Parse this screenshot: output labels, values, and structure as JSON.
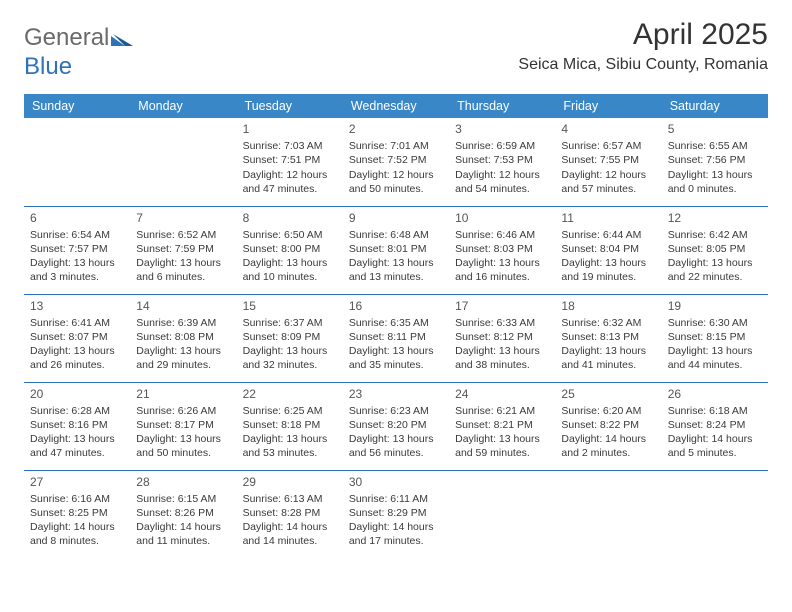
{
  "logo": {
    "text1": "General",
    "text2": "Blue"
  },
  "title": "April 2025",
  "location": "Seica Mica, Sibiu County, Romania",
  "calendar": {
    "header_bg": "#3a87c8",
    "header_fg": "#ffffff",
    "rule_color": "#2f72b8",
    "daynames": [
      "Sunday",
      "Monday",
      "Tuesday",
      "Wednesday",
      "Thursday",
      "Friday",
      "Saturday"
    ],
    "weeks": [
      [
        null,
        null,
        {
          "n": "1",
          "sr": "Sunrise: 7:03 AM",
          "ss": "Sunset: 7:51 PM",
          "dl1": "Daylight: 12 hours",
          "dl2": "and 47 minutes."
        },
        {
          "n": "2",
          "sr": "Sunrise: 7:01 AM",
          "ss": "Sunset: 7:52 PM",
          "dl1": "Daylight: 12 hours",
          "dl2": "and 50 minutes."
        },
        {
          "n": "3",
          "sr": "Sunrise: 6:59 AM",
          "ss": "Sunset: 7:53 PM",
          "dl1": "Daylight: 12 hours",
          "dl2": "and 54 minutes."
        },
        {
          "n": "4",
          "sr": "Sunrise: 6:57 AM",
          "ss": "Sunset: 7:55 PM",
          "dl1": "Daylight: 12 hours",
          "dl2": "and 57 minutes."
        },
        {
          "n": "5",
          "sr": "Sunrise: 6:55 AM",
          "ss": "Sunset: 7:56 PM",
          "dl1": "Daylight: 13 hours",
          "dl2": "and 0 minutes."
        }
      ],
      [
        {
          "n": "6",
          "sr": "Sunrise: 6:54 AM",
          "ss": "Sunset: 7:57 PM",
          "dl1": "Daylight: 13 hours",
          "dl2": "and 3 minutes."
        },
        {
          "n": "7",
          "sr": "Sunrise: 6:52 AM",
          "ss": "Sunset: 7:59 PM",
          "dl1": "Daylight: 13 hours",
          "dl2": "and 6 minutes."
        },
        {
          "n": "8",
          "sr": "Sunrise: 6:50 AM",
          "ss": "Sunset: 8:00 PM",
          "dl1": "Daylight: 13 hours",
          "dl2": "and 10 minutes."
        },
        {
          "n": "9",
          "sr": "Sunrise: 6:48 AM",
          "ss": "Sunset: 8:01 PM",
          "dl1": "Daylight: 13 hours",
          "dl2": "and 13 minutes."
        },
        {
          "n": "10",
          "sr": "Sunrise: 6:46 AM",
          "ss": "Sunset: 8:03 PM",
          "dl1": "Daylight: 13 hours",
          "dl2": "and 16 minutes."
        },
        {
          "n": "11",
          "sr": "Sunrise: 6:44 AM",
          "ss": "Sunset: 8:04 PM",
          "dl1": "Daylight: 13 hours",
          "dl2": "and 19 minutes."
        },
        {
          "n": "12",
          "sr": "Sunrise: 6:42 AM",
          "ss": "Sunset: 8:05 PM",
          "dl1": "Daylight: 13 hours",
          "dl2": "and 22 minutes."
        }
      ],
      [
        {
          "n": "13",
          "sr": "Sunrise: 6:41 AM",
          "ss": "Sunset: 8:07 PM",
          "dl1": "Daylight: 13 hours",
          "dl2": "and 26 minutes."
        },
        {
          "n": "14",
          "sr": "Sunrise: 6:39 AM",
          "ss": "Sunset: 8:08 PM",
          "dl1": "Daylight: 13 hours",
          "dl2": "and 29 minutes."
        },
        {
          "n": "15",
          "sr": "Sunrise: 6:37 AM",
          "ss": "Sunset: 8:09 PM",
          "dl1": "Daylight: 13 hours",
          "dl2": "and 32 minutes."
        },
        {
          "n": "16",
          "sr": "Sunrise: 6:35 AM",
          "ss": "Sunset: 8:11 PM",
          "dl1": "Daylight: 13 hours",
          "dl2": "and 35 minutes."
        },
        {
          "n": "17",
          "sr": "Sunrise: 6:33 AM",
          "ss": "Sunset: 8:12 PM",
          "dl1": "Daylight: 13 hours",
          "dl2": "and 38 minutes."
        },
        {
          "n": "18",
          "sr": "Sunrise: 6:32 AM",
          "ss": "Sunset: 8:13 PM",
          "dl1": "Daylight: 13 hours",
          "dl2": "and 41 minutes."
        },
        {
          "n": "19",
          "sr": "Sunrise: 6:30 AM",
          "ss": "Sunset: 8:15 PM",
          "dl1": "Daylight: 13 hours",
          "dl2": "and 44 minutes."
        }
      ],
      [
        {
          "n": "20",
          "sr": "Sunrise: 6:28 AM",
          "ss": "Sunset: 8:16 PM",
          "dl1": "Daylight: 13 hours",
          "dl2": "and 47 minutes."
        },
        {
          "n": "21",
          "sr": "Sunrise: 6:26 AM",
          "ss": "Sunset: 8:17 PM",
          "dl1": "Daylight: 13 hours",
          "dl2": "and 50 minutes."
        },
        {
          "n": "22",
          "sr": "Sunrise: 6:25 AM",
          "ss": "Sunset: 8:18 PM",
          "dl1": "Daylight: 13 hours",
          "dl2": "and 53 minutes."
        },
        {
          "n": "23",
          "sr": "Sunrise: 6:23 AM",
          "ss": "Sunset: 8:20 PM",
          "dl1": "Daylight: 13 hours",
          "dl2": "and 56 minutes."
        },
        {
          "n": "24",
          "sr": "Sunrise: 6:21 AM",
          "ss": "Sunset: 8:21 PM",
          "dl1": "Daylight: 13 hours",
          "dl2": "and 59 minutes."
        },
        {
          "n": "25",
          "sr": "Sunrise: 6:20 AM",
          "ss": "Sunset: 8:22 PM",
          "dl1": "Daylight: 14 hours",
          "dl2": "and 2 minutes."
        },
        {
          "n": "26",
          "sr": "Sunrise: 6:18 AM",
          "ss": "Sunset: 8:24 PM",
          "dl1": "Daylight: 14 hours",
          "dl2": "and 5 minutes."
        }
      ],
      [
        {
          "n": "27",
          "sr": "Sunrise: 6:16 AM",
          "ss": "Sunset: 8:25 PM",
          "dl1": "Daylight: 14 hours",
          "dl2": "and 8 minutes."
        },
        {
          "n": "28",
          "sr": "Sunrise: 6:15 AM",
          "ss": "Sunset: 8:26 PM",
          "dl1": "Daylight: 14 hours",
          "dl2": "and 11 minutes."
        },
        {
          "n": "29",
          "sr": "Sunrise: 6:13 AM",
          "ss": "Sunset: 8:28 PM",
          "dl1": "Daylight: 14 hours",
          "dl2": "and 14 minutes."
        },
        {
          "n": "30",
          "sr": "Sunrise: 6:11 AM",
          "ss": "Sunset: 8:29 PM",
          "dl1": "Daylight: 14 hours",
          "dl2": "and 17 minutes."
        },
        null,
        null,
        null
      ]
    ]
  }
}
